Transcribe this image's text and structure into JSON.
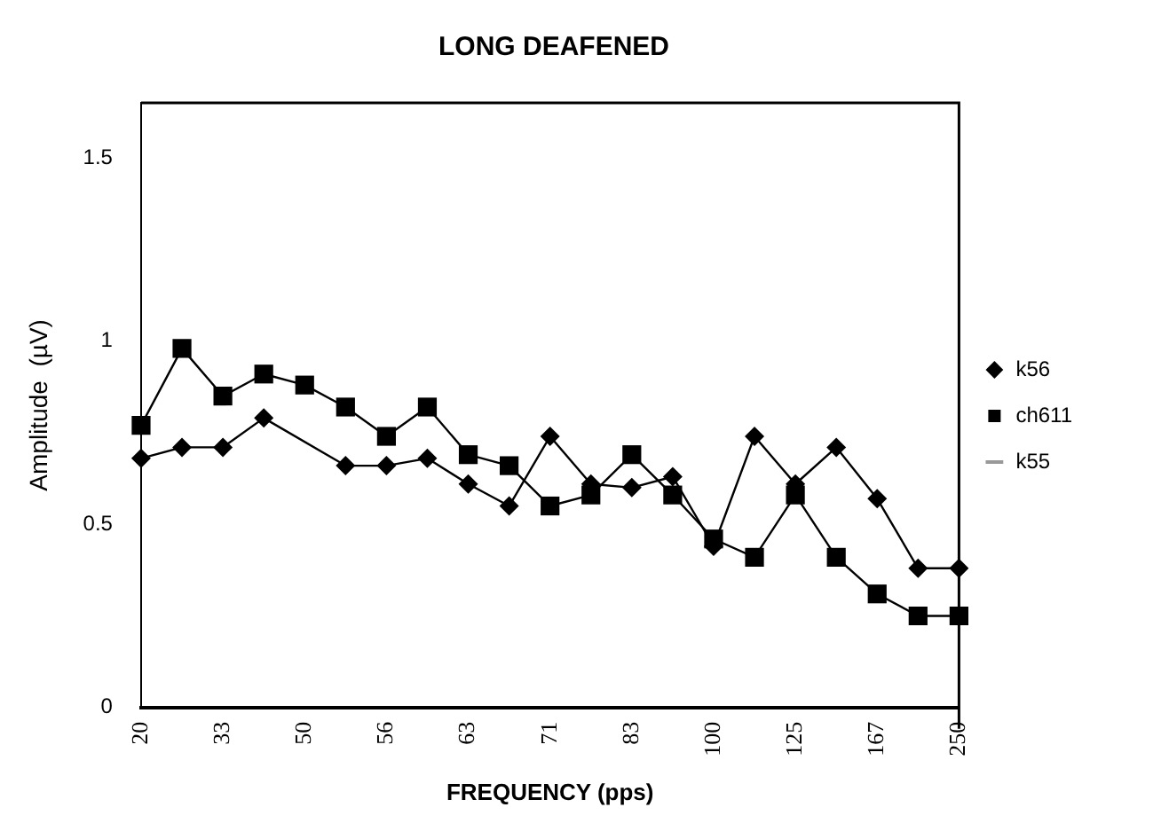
{
  "chart_data": {
    "type": "line",
    "title": "LONG DEAFENED",
    "xlabel": "FREQUENCY (pps)",
    "ylabel": "Amplitude  (µV)",
    "categories": [
      "20",
      null,
      "33",
      null,
      "50",
      null,
      "56",
      null,
      "63",
      null,
      "71",
      null,
      "83",
      null,
      "100",
      null,
      "125",
      null,
      "167",
      null,
      "250"
    ],
    "series": [
      {
        "name": "k56",
        "color": "#000000",
        "marker": "diamond",
        "values": [
          0.68,
          0.71,
          0.71,
          0.79,
          null,
          0.66,
          0.66,
          0.68,
          0.61,
          0.55,
          0.74,
          0.61,
          0.6,
          0.63,
          0.44,
          0.74,
          0.61,
          0.71,
          0.57,
          0.38,
          0.38
        ]
      },
      {
        "name": "ch611",
        "color": "#000000",
        "marker": "square",
        "values": [
          0.77,
          0.98,
          0.85,
          0.91,
          0.88,
          0.82,
          0.74,
          0.82,
          0.69,
          0.66,
          0.55,
          0.58,
          0.69,
          0.58,
          0.46,
          0.41,
          0.58,
          0.41,
          0.31,
          0.25,
          0.25
        ]
      },
      {
        "name": "k55",
        "color": "#999999",
        "marker": "none",
        "values": [
          null,
          null,
          null,
          null,
          null,
          null,
          null,
          null,
          null,
          null,
          null,
          null,
          null,
          null,
          null,
          null,
          null,
          null,
          null,
          null,
          null
        ]
      }
    ],
    "ylim": [
      0,
      1.65
    ],
    "yticks": [
      0,
      0.5,
      1,
      1.5
    ],
    "grid": false,
    "legend": "right"
  }
}
